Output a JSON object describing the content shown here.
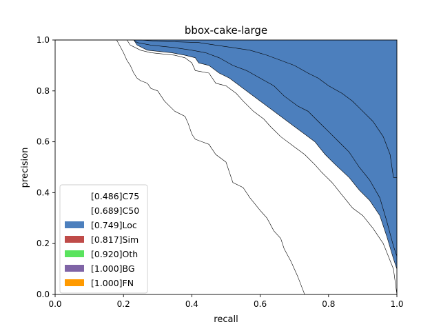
{
  "chart_data": {
    "type": "area",
    "title": "bbox-cake-large",
    "xlabel": "recall",
    "ylabel": "precision",
    "xlim": [
      0,
      1
    ],
    "ylim": [
      0,
      1
    ],
    "xticks": [
      "0.0",
      "0.2",
      "0.4",
      "0.6",
      "0.8",
      "1.0"
    ],
    "yticks": [
      "0.0",
      "0.2",
      "0.4",
      "0.6",
      "0.8",
      "1.0"
    ],
    "grid": false,
    "legend_position": "lower-left",
    "series": [
      {
        "name": "[0.486]C75",
        "color": "#ffffff",
        "points": [
          [
            0,
            1
          ],
          [
            0.18,
            1
          ],
          [
            0.2,
            0.95
          ],
          [
            0.21,
            0.92
          ],
          [
            0.22,
            0.9
          ],
          [
            0.23,
            0.87
          ],
          [
            0.24,
            0.85
          ],
          [
            0.25,
            0.84
          ],
          [
            0.27,
            0.83
          ],
          [
            0.28,
            0.81
          ],
          [
            0.3,
            0.8
          ],
          [
            0.32,
            0.76
          ],
          [
            0.35,
            0.72
          ],
          [
            0.38,
            0.7
          ],
          [
            0.39,
            0.67
          ],
          [
            0.4,
            0.63
          ],
          [
            0.41,
            0.61
          ],
          [
            0.43,
            0.6
          ],
          [
            0.45,
            0.59
          ],
          [
            0.47,
            0.55
          ],
          [
            0.5,
            0.52
          ],
          [
            0.52,
            0.44
          ],
          [
            0.55,
            0.42
          ],
          [
            0.57,
            0.38
          ],
          [
            0.6,
            0.33
          ],
          [
            0.62,
            0.3
          ],
          [
            0.64,
            0.25
          ],
          [
            0.66,
            0.22
          ],
          [
            0.67,
            0.18
          ],
          [
            0.69,
            0.13
          ],
          [
            0.71,
            0.07
          ],
          [
            0.73,
            0
          ],
          [
            1,
            0
          ]
        ]
      },
      {
        "name": "[0.689]C50",
        "color": "#ffffff",
        "points": [
          [
            0,
            1
          ],
          [
            0.21,
            1
          ],
          [
            0.22,
            0.98
          ],
          [
            0.25,
            0.96
          ],
          [
            0.28,
            0.95
          ],
          [
            0.35,
            0.94
          ],
          [
            0.38,
            0.93
          ],
          [
            0.4,
            0.91
          ],
          [
            0.41,
            0.88
          ],
          [
            0.45,
            0.87
          ],
          [
            0.47,
            0.83
          ],
          [
            0.5,
            0.82
          ],
          [
            0.53,
            0.79
          ],
          [
            0.55,
            0.76
          ],
          [
            0.58,
            0.72
          ],
          [
            0.61,
            0.69
          ],
          [
            0.63,
            0.66
          ],
          [
            0.66,
            0.62
          ],
          [
            0.7,
            0.58
          ],
          [
            0.73,
            0.55
          ],
          [
            0.76,
            0.51
          ],
          [
            0.78,
            0.48
          ],
          [
            0.81,
            0.44
          ],
          [
            0.84,
            0.39
          ],
          [
            0.87,
            0.34
          ],
          [
            0.9,
            0.31
          ],
          [
            0.93,
            0.26
          ],
          [
            0.96,
            0.2
          ],
          [
            0.99,
            0.1
          ],
          [
            1,
            0
          ]
        ]
      },
      {
        "name": "[0.749]Loc",
        "color": "#4c7fbd",
        "points": [
          [
            0,
            1
          ],
          [
            0.23,
            1
          ],
          [
            0.24,
            0.98
          ],
          [
            0.27,
            0.96
          ],
          [
            0.34,
            0.95
          ],
          [
            0.38,
            0.94
          ],
          [
            0.41,
            0.93
          ],
          [
            0.42,
            0.91
          ],
          [
            0.45,
            0.9
          ],
          [
            0.48,
            0.87
          ],
          [
            0.51,
            0.85
          ],
          [
            0.54,
            0.82
          ],
          [
            0.57,
            0.79
          ],
          [
            0.6,
            0.76
          ],
          [
            0.63,
            0.73
          ],
          [
            0.66,
            0.7
          ],
          [
            0.7,
            0.66
          ],
          [
            0.73,
            0.63
          ],
          [
            0.76,
            0.6
          ],
          [
            0.79,
            0.55
          ],
          [
            0.82,
            0.51
          ],
          [
            0.86,
            0.46
          ],
          [
            0.89,
            0.41
          ],
          [
            0.92,
            0.37
          ],
          [
            0.95,
            0.31
          ],
          [
            0.97,
            0.23
          ],
          [
            0.99,
            0.14
          ],
          [
            1,
            0.1
          ]
        ]
      },
      {
        "name": "[0.817]Sim",
        "color": "#bf4b48",
        "points": [
          [
            0,
            1
          ],
          [
            0.23,
            1
          ],
          [
            0.24,
            0.99
          ],
          [
            0.28,
            0.98
          ],
          [
            0.35,
            0.97
          ],
          [
            0.4,
            0.96
          ],
          [
            0.44,
            0.95
          ],
          [
            0.48,
            0.93
          ],
          [
            0.52,
            0.9
          ],
          [
            0.56,
            0.88
          ],
          [
            0.6,
            0.85
          ],
          [
            0.64,
            0.82
          ],
          [
            0.67,
            0.78
          ],
          [
            0.71,
            0.74
          ],
          [
            0.74,
            0.72
          ],
          [
            0.77,
            0.68
          ],
          [
            0.8,
            0.64
          ],
          [
            0.83,
            0.6
          ],
          [
            0.86,
            0.56
          ],
          [
            0.89,
            0.5
          ],
          [
            0.92,
            0.45
          ],
          [
            0.95,
            0.38
          ],
          [
            0.97,
            0.29
          ],
          [
            0.99,
            0.19
          ],
          [
            1,
            0.15
          ]
        ]
      },
      {
        "name": "[0.920]Oth",
        "color": "#5ae35e",
        "points": [
          [
            0,
            1
          ],
          [
            0.25,
            1
          ],
          [
            0.3,
            0.995
          ],
          [
            0.42,
            0.99
          ],
          [
            0.47,
            0.98
          ],
          [
            0.52,
            0.97
          ],
          [
            0.57,
            0.96
          ],
          [
            0.62,
            0.94
          ],
          [
            0.66,
            0.92
          ],
          [
            0.7,
            0.9
          ],
          [
            0.74,
            0.87
          ],
          [
            0.77,
            0.85
          ],
          [
            0.8,
            0.82
          ],
          [
            0.84,
            0.79
          ],
          [
            0.87,
            0.76
          ],
          [
            0.9,
            0.72
          ],
          [
            0.93,
            0.68
          ],
          [
            0.96,
            0.62
          ],
          [
            0.98,
            0.55
          ],
          [
            0.99,
            0.46
          ],
          [
            1,
            0.46
          ]
        ]
      },
      {
        "name": "[1.000]BG",
        "color": "#7f64a6",
        "points": [
          [
            0,
            1
          ],
          [
            1,
            1
          ]
        ]
      },
      {
        "name": "[1.000]FN",
        "color": "#ff9a00",
        "points": [
          [
            0,
            1
          ],
          [
            1,
            1
          ]
        ]
      }
    ]
  }
}
